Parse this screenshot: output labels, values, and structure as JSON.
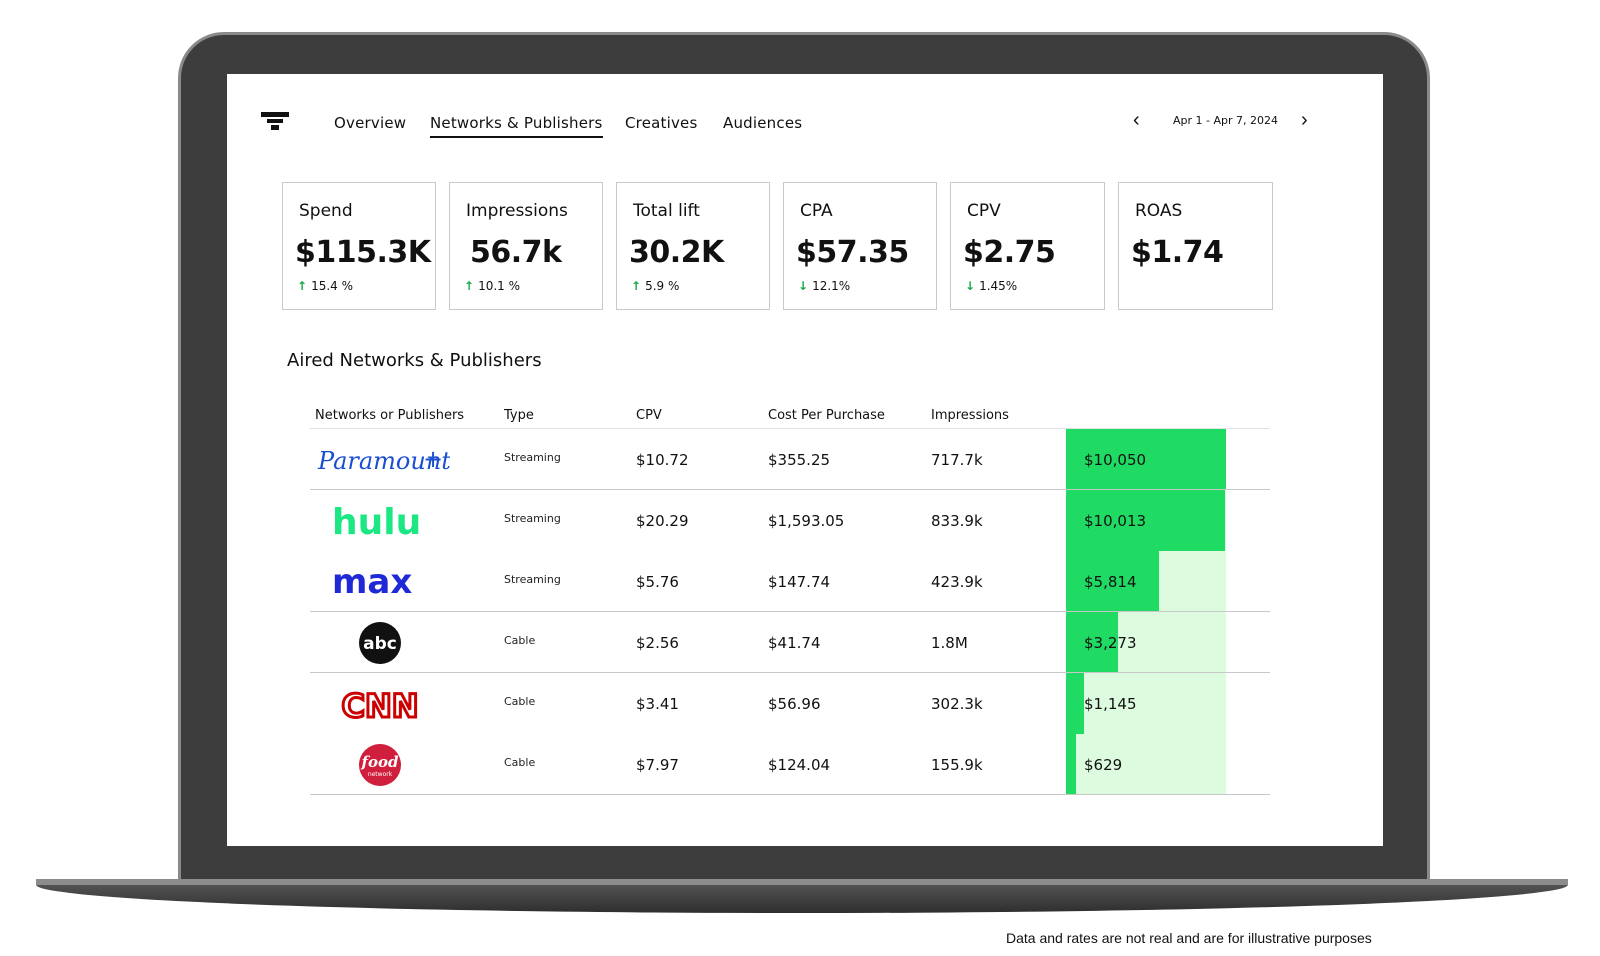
{
  "nav": {
    "tabs": [
      "Overview",
      "Networks & Publishers",
      "Creatives",
      "Audiences"
    ],
    "active_tab": "Networks & Publishers",
    "date_range": "Apr 1 - Apr 7, 2024",
    "prev_icon": "chevron-left-icon",
    "next_icon": "chevron-right-icon"
  },
  "kpis": [
    {
      "label": "Spend",
      "value": "$115.3K",
      "delta": "15.4 %",
      "direction": "up"
    },
    {
      "label": "Impressions",
      "value": "56.7k",
      "delta": "10.1 %",
      "direction": "up"
    },
    {
      "label": "Total lift",
      "value": "30.2K",
      "delta": "5.9 %",
      "direction": "up"
    },
    {
      "label": "CPA",
      "value": "$57.35",
      "delta": "12.1%",
      "direction": "down"
    },
    {
      "label": "CPV",
      "value": "$2.75",
      "delta": "1.45%",
      "direction": "down"
    },
    {
      "label": "ROAS",
      "value": "$1.74",
      "delta": "",
      "direction": ""
    }
  ],
  "section_title": "Aired Networks & Publishers",
  "table": {
    "headers": [
      "Networks or Publishers",
      "Type",
      "CPV",
      "Cost Per Purchase",
      "Impressions"
    ],
    "rows": [
      {
        "network": "Paramount+",
        "type": "Streaming",
        "cpv": "$10.72",
        "cpp": "$355.25",
        "impressions": "717.7k",
        "spend": "$10,050",
        "spend_value": 10050
      },
      {
        "network": "hulu",
        "type": "Streaming",
        "cpv": "$20.29",
        "cpp": "$1,593.05",
        "impressions": "833.9k",
        "spend": "$10,013",
        "spend_value": 10013
      },
      {
        "network": "max",
        "type": "Streaming",
        "cpv": "$5.76",
        "cpp": "$147.74",
        "impressions": "423.9k",
        "spend": "$5,814",
        "spend_value": 5814
      },
      {
        "network": "abc",
        "type": "Cable",
        "cpv": "$2.56",
        "cpp": "$41.74",
        "impressions": "1.8M",
        "spend": "$3,273",
        "spend_value": 3273
      },
      {
        "network": "CNN",
        "type": "Cable",
        "cpv": "$3.41",
        "cpp": "$56.96",
        "impressions": "302.3k",
        "spend": "$1,145",
        "spend_value": 1145
      },
      {
        "network": "food network",
        "type": "Cable",
        "cpv": "$7.97",
        "cpp": "$124.04",
        "impressions": "155.9k",
        "spend": "$629",
        "spend_value": 629
      }
    ]
  },
  "colors": {
    "bar_fill": "#1fdb63",
    "bar_bg": "#dcfbdf",
    "arrow": "#1aa84c"
  },
  "disclaimer": "Data and rates are not real and are for illustrative purposes"
}
